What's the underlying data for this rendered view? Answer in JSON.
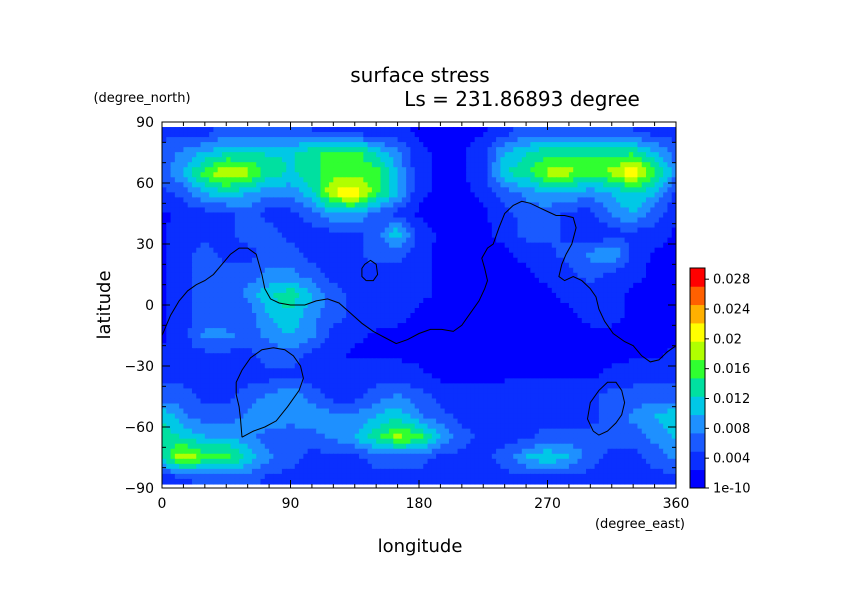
{
  "chart_data": {
    "type": "heatmap",
    "title": "surface stress",
    "subtitle": "Ls = 231.86893 degree",
    "xlabel": "longitude",
    "ylabel": "latitude",
    "xunit": "(degree_east)",
    "yunit": "(degree_north)",
    "xlim": [
      0,
      360
    ],
    "ylim": [
      -90,
      90
    ],
    "xticks": [
      "0",
      "90",
      "180",
      "270",
      "360"
    ],
    "yticks": [
      "90",
      "60",
      "30",
      "0",
      "−30",
      "−60",
      "−90"
    ],
    "x": [
      0,
      15,
      30,
      45,
      60,
      75,
      90,
      105,
      120,
      135,
      150,
      165,
      180,
      195,
      210,
      225,
      240,
      255,
      270,
      285,
      300,
      315,
      330,
      345,
      360
    ],
    "y": [
      85,
      75,
      65,
      55,
      45,
      35,
      25,
      15,
      5,
      -5,
      -15,
      -25,
      -35,
      -45,
      -55,
      -65,
      -75,
      -85
    ],
    "z": [
      [
        0.004,
        0.004,
        0.004,
        0.006,
        0.006,
        0.006,
        0.005,
        0.005,
        0.004,
        0.004,
        0.003,
        0.003,
        0.002,
        0.002,
        0.002,
        0.002,
        0.004,
        0.006,
        0.006,
        0.006,
        0.006,
        0.006,
        0.005,
        0.004,
        0.004
      ],
      [
        0.006,
        0.008,
        0.01,
        0.012,
        0.012,
        0.012,
        0.012,
        0.014,
        0.016,
        0.016,
        0.012,
        0.008,
        0.003,
        0.002,
        0.002,
        0.004,
        0.01,
        0.012,
        0.014,
        0.014,
        0.014,
        0.014,
        0.014,
        0.01,
        0.006
      ],
      [
        0.006,
        0.01,
        0.016,
        0.02,
        0.018,
        0.014,
        0.012,
        0.014,
        0.016,
        0.016,
        0.016,
        0.01,
        0.003,
        0.002,
        0.002,
        0.004,
        0.012,
        0.014,
        0.018,
        0.018,
        0.016,
        0.018,
        0.022,
        0.016,
        0.008
      ],
      [
        0.004,
        0.006,
        0.01,
        0.012,
        0.01,
        0.008,
        0.008,
        0.012,
        0.02,
        0.022,
        0.016,
        0.01,
        0.003,
        0.002,
        0.002,
        0.003,
        0.006,
        0.008,
        0.01,
        0.01,
        0.008,
        0.01,
        0.012,
        0.01,
        0.004
      ],
      [
        0.002,
        0.003,
        0.004,
        0.004,
        0.006,
        0.004,
        0.004,
        0.006,
        0.01,
        0.01,
        0.006,
        0.004,
        0.002,
        0.001,
        0.001,
        0.002,
        0.004,
        0.006,
        0.006,
        0.004,
        0.004,
        0.008,
        0.01,
        0.006,
        0.003
      ],
      [
        0.002,
        0.004,
        0.004,
        0.004,
        0.006,
        0.006,
        0.004,
        0.004,
        0.004,
        0.004,
        0.006,
        0.012,
        0.004,
        0.002,
        0.001,
        0.002,
        0.003,
        0.006,
        0.006,
        0.004,
        0.002,
        0.004,
        0.004,
        0.004,
        0.002
      ],
      [
        0.002,
        0.004,
        0.006,
        0.004,
        0.004,
        0.006,
        0.006,
        0.004,
        0.004,
        0.004,
        0.006,
        0.006,
        0.003,
        0.002,
        0.001,
        0.002,
        0.002,
        0.003,
        0.004,
        0.006,
        0.008,
        0.01,
        0.004,
        0.002,
        0.002
      ],
      [
        0.002,
        0.004,
        0.006,
        0.006,
        0.006,
        0.008,
        0.008,
        0.006,
        0.004,
        0.004,
        0.004,
        0.004,
        0.003,
        0.002,
        0.001,
        0.001,
        0.002,
        0.002,
        0.003,
        0.004,
        0.006,
        0.004,
        0.003,
        0.002,
        0.002
      ],
      [
        0.002,
        0.004,
        0.006,
        0.006,
        0.008,
        0.012,
        0.014,
        0.01,
        0.006,
        0.004,
        0.004,
        0.004,
        0.003,
        0.002,
        0.001,
        0.001,
        0.001,
        0.002,
        0.002,
        0.003,
        0.004,
        0.003,
        0.002,
        0.002,
        0.002
      ],
      [
        0.002,
        0.004,
        0.006,
        0.006,
        0.006,
        0.01,
        0.012,
        0.008,
        0.006,
        0.004,
        0.004,
        0.003,
        0.002,
        0.001,
        0.001,
        0.001,
        0.001,
        0.001,
        0.002,
        0.002,
        0.003,
        0.003,
        0.002,
        0.002,
        0.002
      ],
      [
        0.002,
        0.004,
        0.008,
        0.008,
        0.006,
        0.008,
        0.01,
        0.008,
        0.004,
        0.003,
        0.002,
        0.002,
        0.002,
        0.001,
        0.001,
        0.001,
        0.001,
        0.001,
        0.001,
        0.002,
        0.002,
        0.002,
        0.002,
        0.002,
        0.002
      ],
      [
        0.003,
        0.004,
        0.004,
        0.004,
        0.004,
        0.006,
        0.006,
        0.004,
        0.003,
        0.002,
        0.002,
        0.002,
        0.002,
        0.001,
        0.001,
        0.001,
        0.001,
        0.001,
        0.001,
        0.002,
        0.002,
        0.002,
        0.002,
        0.002,
        0.003
      ],
      [
        0.004,
        0.004,
        0.004,
        0.004,
        0.004,
        0.004,
        0.004,
        0.004,
        0.004,
        0.004,
        0.004,
        0.004,
        0.003,
        0.002,
        0.002,
        0.002,
        0.002,
        0.002,
        0.002,
        0.002,
        0.002,
        0.003,
        0.004,
        0.004,
        0.004
      ],
      [
        0.006,
        0.006,
        0.004,
        0.004,
        0.006,
        0.008,
        0.01,
        0.006,
        0.004,
        0.004,
        0.006,
        0.008,
        0.006,
        0.004,
        0.003,
        0.003,
        0.004,
        0.004,
        0.004,
        0.004,
        0.004,
        0.006,
        0.006,
        0.006,
        0.006
      ],
      [
        0.012,
        0.008,
        0.006,
        0.006,
        0.008,
        0.01,
        0.008,
        0.01,
        0.008,
        0.008,
        0.01,
        0.012,
        0.008,
        0.006,
        0.004,
        0.004,
        0.004,
        0.004,
        0.004,
        0.004,
        0.004,
        0.006,
        0.008,
        0.01,
        0.012
      ],
      [
        0.014,
        0.012,
        0.01,
        0.01,
        0.008,
        0.006,
        0.006,
        0.006,
        0.008,
        0.01,
        0.014,
        0.018,
        0.016,
        0.01,
        0.006,
        0.004,
        0.004,
        0.004,
        0.006,
        0.006,
        0.006,
        0.006,
        0.006,
        0.008,
        0.01
      ],
      [
        0.012,
        0.02,
        0.016,
        0.016,
        0.012,
        0.008,
        0.006,
        0.004,
        0.004,
        0.004,
        0.006,
        0.006,
        0.006,
        0.004,
        0.004,
        0.004,
        0.006,
        0.01,
        0.012,
        0.01,
        0.006,
        0.004,
        0.004,
        0.006,
        0.008
      ],
      [
        0.004,
        0.004,
        0.006,
        0.006,
        0.006,
        0.004,
        0.004,
        0.004,
        0.004,
        0.004,
        0.004,
        0.004,
        0.004,
        0.004,
        0.004,
        0.004,
        0.004,
        0.004,
        0.004,
        0.004,
        0.004,
        0.004,
        0.004,
        0.004,
        0.004
      ]
    ],
    "contours": [
      [
        [
          0,
          -15
        ],
        [
          6,
          -5
        ],
        [
          12,
          2
        ],
        [
          18,
          7
        ],
        [
          24,
          10
        ],
        [
          30,
          12
        ],
        [
          36,
          15
        ],
        [
          42,
          20
        ],
        [
          48,
          25
        ],
        [
          54,
          28
        ],
        [
          60,
          28
        ],
        [
          66,
          25
        ],
        [
          70,
          15
        ],
        [
          72,
          8
        ],
        [
          76,
          3
        ],
        [
          82,
          1
        ],
        [
          90,
          0
        ],
        [
          100,
          0
        ],
        [
          108,
          2
        ],
        [
          116,
          3
        ],
        [
          124,
          1
        ],
        [
          132,
          -4
        ],
        [
          140,
          -9
        ],
        [
          148,
          -13
        ],
        [
          156,
          -16
        ],
        [
          164,
          -19
        ],
        [
          172,
          -17
        ],
        [
          180,
          -14
        ],
        [
          188,
          -12
        ],
        [
          196,
          -12
        ],
        [
          204,
          -13
        ],
        [
          210,
          -10
        ],
        [
          216,
          -4
        ],
        [
          222,
          2
        ],
        [
          226,
          8
        ],
        [
          228,
          12
        ],
        [
          226,
          18
        ],
        [
          224,
          23
        ],
        [
          228,
          28
        ],
        [
          232,
          30
        ],
        [
          236,
          38
        ],
        [
          240,
          45
        ],
        [
          246,
          49
        ],
        [
          252,
          51
        ],
        [
          258,
          50
        ],
        [
          264,
          48
        ],
        [
          270,
          46
        ],
        [
          276,
          44
        ],
        [
          282,
          44
        ],
        [
          288,
          43
        ],
        [
          290,
          38
        ],
        [
          287,
          30
        ],
        [
          283,
          25
        ],
        [
          280,
          20
        ],
        [
          278,
          14
        ],
        [
          282,
          12
        ],
        [
          288,
          14
        ],
        [
          294,
          12
        ],
        [
          300,
          8
        ],
        [
          304,
          4
        ],
        [
          306,
          -2
        ],
        [
          310,
          -8
        ],
        [
          316,
          -14
        ],
        [
          324,
          -18
        ],
        [
          330,
          -20
        ],
        [
          336,
          -25
        ],
        [
          342,
          -28
        ],
        [
          348,
          -27
        ],
        [
          354,
          -23
        ],
        [
          360,
          -20
        ]
      ],
      [
        [
          56,
          -65
        ],
        [
          64,
          -62
        ],
        [
          72,
          -60
        ],
        [
          80,
          -57
        ],
        [
          88,
          -50
        ],
        [
          96,
          -42
        ],
        [
          99,
          -36
        ],
        [
          97,
          -30
        ],
        [
          92,
          -25
        ],
        [
          86,
          -22
        ],
        [
          78,
          -21
        ],
        [
          70,
          -22
        ],
        [
          62,
          -26
        ],
        [
          56,
          -32
        ],
        [
          52,
          -38
        ],
        [
          52,
          -44
        ],
        [
          54,
          -50
        ],
        [
          55,
          -56
        ],
        [
          56,
          -65
        ]
      ],
      [
        [
          143,
          12
        ],
        [
          140,
          14
        ],
        [
          140,
          18
        ],
        [
          142,
          20
        ],
        [
          146,
          22
        ],
        [
          150,
          20
        ],
        [
          151,
          15
        ],
        [
          148,
          12
        ],
        [
          143,
          12
        ]
      ],
      [
        [
          302,
          -62
        ],
        [
          298,
          -56
        ],
        [
          300,
          -48
        ],
        [
          306,
          -42
        ],
        [
          312,
          -38
        ],
        [
          318,
          -38
        ],
        [
          322,
          -42
        ],
        [
          324,
          -48
        ],
        [
          322,
          -54
        ],
        [
          318,
          -58
        ],
        [
          312,
          -62
        ],
        [
          306,
          -64
        ],
        [
          302,
          -62
        ]
      ]
    ],
    "colorbar": {
      "labels": [
        "0.028",
        "0.024",
        "0.02",
        "0.016",
        "0.012",
        "0.008",
        "0.004",
        "1e-10"
      ],
      "values": [
        0.028,
        0.024,
        0.02,
        0.016,
        0.012,
        0.008,
        0.004,
        0.0
      ],
      "min": 0.0,
      "max": 0.0295,
      "colors": [
        "#0000ff",
        "#0a2fff",
        "#1a5aff",
        "#1e90ff",
        "#00c8e6",
        "#00e0a0",
        "#30ff30",
        "#b0ff00",
        "#ffff00",
        "#ffb000",
        "#ff6000",
        "#ff0000"
      ]
    },
    "grid": false
  }
}
